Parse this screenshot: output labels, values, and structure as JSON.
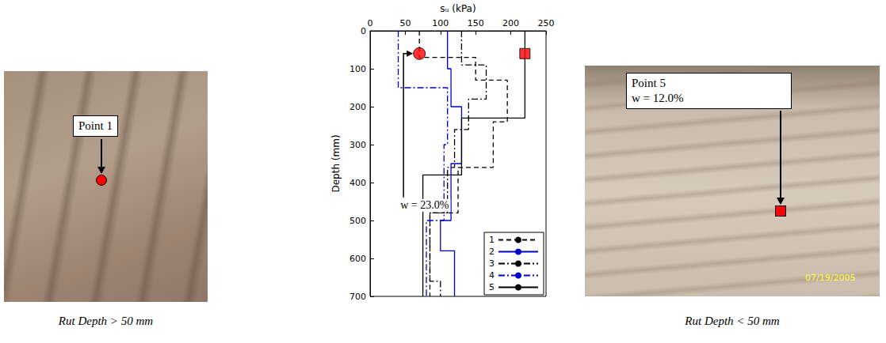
{
  "chart_data": {
    "type": "line",
    "xlabel": "sᵤ (kPa)",
    "ylabel": "Depth (mm)",
    "xlim": [
      0,
      250
    ],
    "xticks": [
      0,
      50,
      100,
      150,
      200,
      250
    ],
    "ylim": [
      0,
      700
    ],
    "yticks": [
      0,
      100,
      200,
      300,
      400,
      500,
      600,
      700
    ],
    "legend": "bottom right",
    "grid": false,
    "series": [
      {
        "name": "1",
        "color": "#000000",
        "line_style": "dashed",
        "x": [
          70,
          70,
          150,
          150,
          195,
          195,
          175,
          175,
          125,
          125,
          85,
          85
        ],
        "y": [
          0,
          70,
          70,
          130,
          130,
          240,
          240,
          360,
          360,
          480,
          480,
          700
        ]
      },
      {
        "name": "2",
        "color": "#0000cc",
        "line_style": "solid",
        "x": [
          110,
          110,
          115,
          115,
          130,
          130,
          115,
          115,
          100,
          100,
          120,
          120
        ],
        "y": [
          0,
          100,
          100,
          200,
          200,
          350,
          350,
          500,
          500,
          580,
          580,
          700
        ]
      },
      {
        "name": "3",
        "color": "#000000",
        "line_style": "dashdot",
        "x": [
          130,
          130,
          165,
          165,
          140,
          140,
          120,
          120,
          110,
          110,
          85,
          85,
          100,
          100
        ],
        "y": [
          0,
          90,
          90,
          180,
          180,
          260,
          260,
          360,
          360,
          480,
          480,
          660,
          660,
          700
        ]
      },
      {
        "name": "4",
        "color": "#0000cc",
        "line_style": "dashdot",
        "x": [
          40,
          40,
          110,
          110,
          105,
          105,
          80,
          80
        ],
        "y": [
          0,
          150,
          150,
          300,
          300,
          500,
          500,
          700
        ]
      },
      {
        "name": "5",
        "color": "#000000",
        "line_style": "solid",
        "x": [
          220,
          220,
          130,
          130,
          75,
          75
        ],
        "y": [
          0,
          230,
          230,
          380,
          380,
          700
        ]
      }
    ],
    "markers": [
      {
        "x": 70,
        "y": 60,
        "marker": "circle",
        "color": "#ff0000",
        "label": "w = 23.0%"
      },
      {
        "x": 220,
        "y": 60,
        "marker": "square",
        "color": "#ff0000"
      }
    ]
  },
  "photos": [
    {
      "caption": "Rut Depth > 50 mm",
      "callout": [
        "Point 1"
      ],
      "marker": "circle",
      "color": "#ff0000"
    },
    {
      "caption": "Rut Depth < 50 mm",
      "callout": [
        "Point 5",
        "w = 12.0%"
      ],
      "marker": "square",
      "color": "#ff0000",
      "stamp": "07/19/2005",
      "stamp_color": "#ffff33"
    }
  ]
}
